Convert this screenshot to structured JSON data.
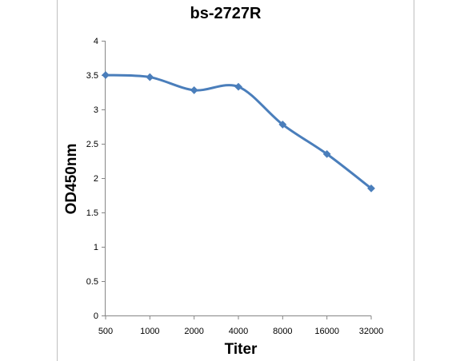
{
  "chart_data": {
    "type": "line",
    "title": "bs-2727R",
    "xlabel": "Titer",
    "ylabel": "OD450nm",
    "categories": [
      "500",
      "1000",
      "2000",
      "4000",
      "8000",
      "16000",
      "32000"
    ],
    "series": [
      {
        "values": [
          3.5,
          3.47,
          3.28,
          3.33,
          2.78,
          2.35,
          1.85
        ]
      }
    ],
    "yticks": [
      "0",
      "0.5",
      "1",
      "1.5",
      "2",
      "2.5",
      "3",
      "3.5",
      "4"
    ],
    "ylim": [
      0,
      4
    ],
    "grid": false,
    "legend": "none",
    "line_color": "#4a7ebb",
    "axis_color": "#868686",
    "frame_color": "#bfbfbf"
  }
}
